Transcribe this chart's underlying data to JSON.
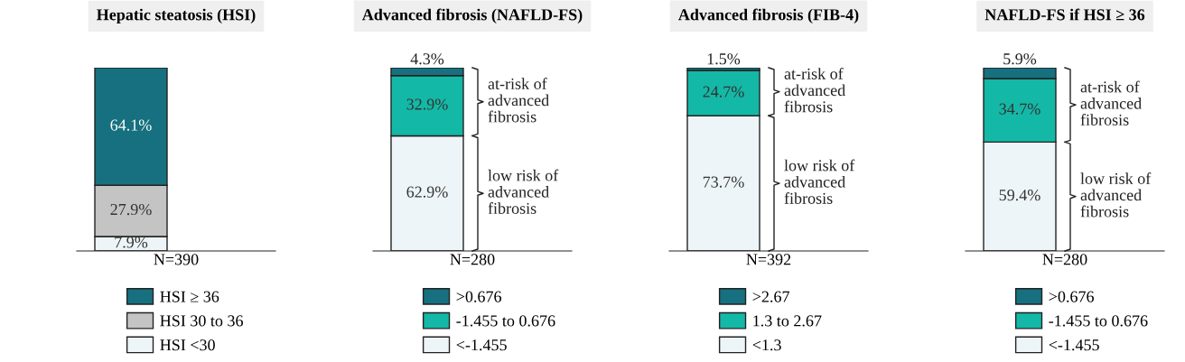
{
  "chart_data": [
    {
      "type": "bar",
      "title": "Hepatic steatosis (HSI)",
      "xlabel": "N=390",
      "categories": [
        null
      ],
      "stacked": true,
      "tick_labels": false,
      "legend": "bottom",
      "series": [
        {
          "name": "HSI <30",
          "color": "#eef5f8",
          "values": [
            7.9
          ],
          "value_labels": [
            "7.9%"
          ]
        },
        {
          "name": "HSI 30 to 36",
          "color": "#c4c4c4",
          "values": [
            27.9
          ],
          "value_labels": [
            "27.9%"
          ]
        },
        {
          "name": "HSI ≥ 36",
          "color": "#17707f",
          "values": [
            64.1
          ],
          "value_labels": [
            "64.1%"
          ]
        }
      ]
    },
    {
      "type": "bar",
      "title": "Advanced fibrosis (NAFLD-FS)",
      "xlabel": "N=280",
      "categories": [
        null
      ],
      "stacked": true,
      "tick_labels": false,
      "legend": "bottom",
      "series": [
        {
          "name": "<-1.455",
          "color": "#eef5f8",
          "values": [
            62.9
          ],
          "value_labels": [
            "62.9%"
          ]
        },
        {
          "name": "-1.455 to 0.676",
          "color": "#14b8a6",
          "values": [
            32.9
          ],
          "value_labels": [
            "32.9%"
          ]
        },
        {
          "name": ">0.676",
          "color": "#17707f",
          "values": [
            4.3
          ],
          "value_labels": [
            "4.3%"
          ]
        }
      ],
      "annotations": [
        "at-risk of\nadvanced\nfibrosis",
        "low risk of\nadvanced\nfibrosis"
      ]
    },
    {
      "type": "bar",
      "title": "Advanced fibrosis (FIB-4)",
      "xlabel": "N=392",
      "categories": [
        null
      ],
      "stacked": true,
      "tick_labels": false,
      "legend": "bottom",
      "series": [
        {
          "name": "<1.3",
          "color": "#eef5f8",
          "values": [
            73.7
          ],
          "value_labels": [
            "73.7%"
          ]
        },
        {
          "name": "1.3 to 2.67",
          "color": "#14b8a6",
          "values": [
            24.7
          ],
          "value_labels": [
            "24.7%"
          ]
        },
        {
          "name": ">2.67",
          "color": "#17707f",
          "values": [
            1.5
          ],
          "value_labels": [
            "1.5%"
          ]
        }
      ],
      "annotations": [
        "at-risk of\nadvanced\nfibrosis",
        "low risk of\nadvanced\nfibrosis"
      ]
    },
    {
      "type": "bar",
      "title": "NAFLD-FS if HSI ≥ 36",
      "xlabel": "N=280",
      "categories": [
        null
      ],
      "stacked": true,
      "tick_labels": false,
      "legend": "bottom",
      "series": [
        {
          "name": "<-1.455",
          "color": "#eef5f8",
          "values": [
            59.4
          ],
          "value_labels": [
            "59.4%"
          ]
        },
        {
          "name": "-1.455 to 0.676",
          "color": "#14b8a6",
          "values": [
            34.7
          ],
          "value_labels": [
            "34.7%"
          ]
        },
        {
          "name": ">0.676",
          "color": "#17707f",
          "values": [
            5.9
          ],
          "value_labels": [
            "5.9%"
          ]
        }
      ],
      "annotations": [
        "at-risk of\nadvanced\nfibrosis",
        "low risk of\nadvanced\nfibrosis"
      ]
    }
  ]
}
